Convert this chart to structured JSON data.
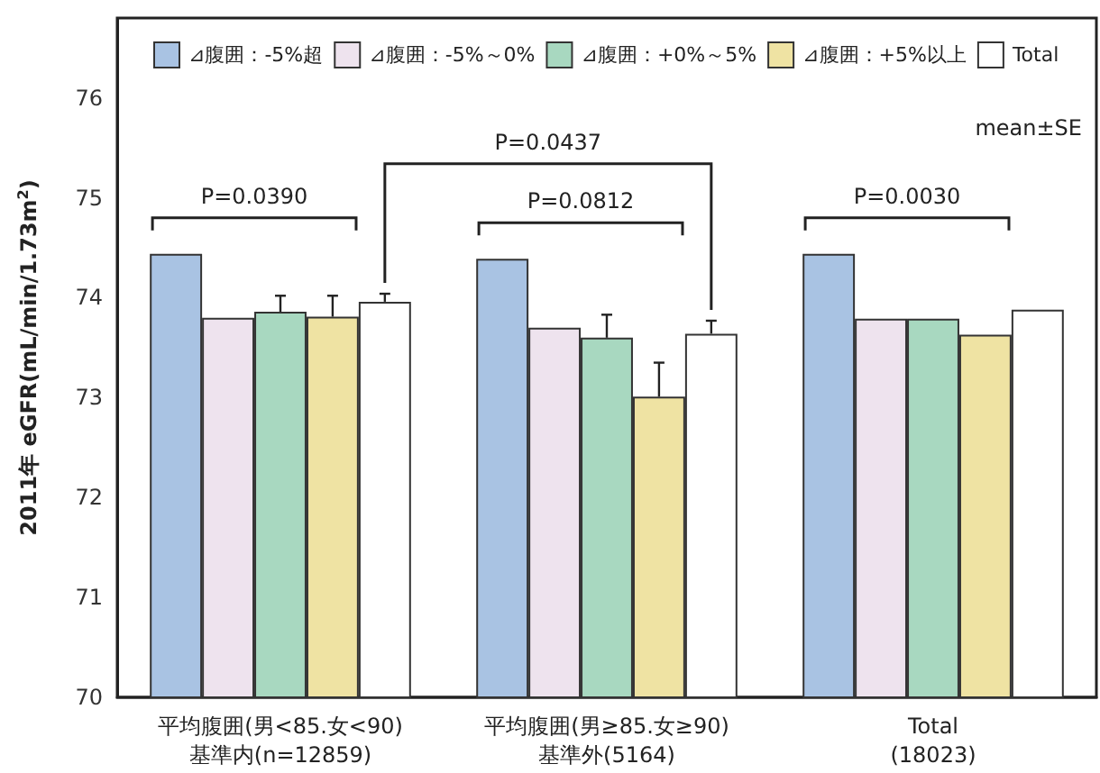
{
  "chart_data": {
    "type": "bar",
    "categories": [
      "平均腹囲(男<85.女<90)\n基準内(n=12859)",
      "平均腹囲(男≥85.女≥90)\n基準外(5164)",
      "Total\n(18023)"
    ],
    "series": [
      {
        "name": "⊿腹囲：-5%超",
        "color": "#a9c3e3",
        "values": [
          74.44,
          74.39,
          74.44
        ]
      },
      {
        "name": "⊿腹囲：-5%～0%",
        "color": "#eee3ee",
        "values": [
          73.8,
          73.7,
          73.79
        ]
      },
      {
        "name": "⊿腹囲：+0%～5%",
        "color": "#a8d8c0",
        "values": [
          73.86,
          73.6,
          73.79
        ],
        "errors": [
          0.16,
          0.23,
          null
        ]
      },
      {
        "name": "⊿腹囲：+5%以上",
        "color": "#efe3a3",
        "values": [
          73.81,
          73.01,
          73.63
        ],
        "errors": [
          0.21,
          0.34,
          null
        ]
      },
      {
        "name": "Total",
        "color": "#ffffff",
        "values": [
          73.96,
          73.64,
          73.88
        ],
        "errors": [
          0.08,
          0.13,
          null
        ]
      }
    ],
    "ylabel": "2011年 eGFR(mL/min/1.73m$^{2}$)",
    "ylim": [
      70,
      76.8
    ],
    "yticks": [
      70,
      71,
      72,
      73,
      74,
      75,
      76
    ],
    "annotations": [
      "P=0.0390",
      "P=0.0437",
      "P=0.0812",
      "P=0.0030",
      "mean±SE"
    ],
    "legend": "top",
    "grid": false
  }
}
